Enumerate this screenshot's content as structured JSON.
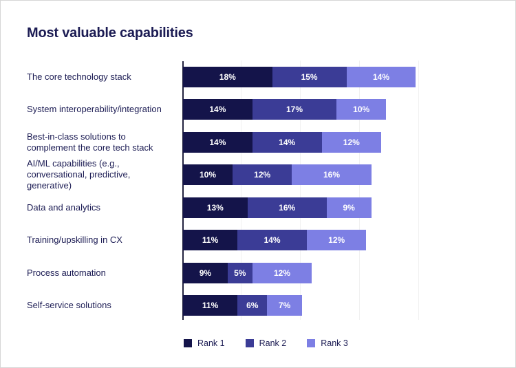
{
  "title": "Most valuable capabilities",
  "colors": {
    "rank1": "#14144a",
    "rank2": "#3b3c96",
    "rank3": "#7d7fe4",
    "text": "#1b1b53",
    "axis": "#22223f",
    "gridline": "#f1f1f1",
    "frame_border": "#d6d6d6",
    "background": "#ffffff",
    "value_label": "#ffffff"
  },
  "chart_data": {
    "type": "bar",
    "orientation": "horizontal",
    "stacked": true,
    "title": "Most valuable capabilities",
    "xlabel": "",
    "ylabel": "",
    "value_suffix": "%",
    "xlim": [
      0,
      62
    ],
    "grid": "faint-vertical",
    "legend_position": "bottom",
    "categories": [
      "The core technology stack",
      "System interoperability/integration",
      "Best-in-class solutions to complement the core tech stack",
      "AI/ML capabilities (e.g., conversational, predictive, generative)",
      "Data and analytics",
      "Training/upskilling in CX",
      "Process automation",
      "Self-service solutions"
    ],
    "series": [
      {
        "name": "Rank 1",
        "color": "#14144a",
        "values": [
          18,
          14,
          14,
          10,
          13,
          11,
          9,
          11
        ]
      },
      {
        "name": "Rank 2",
        "color": "#3b3c96",
        "values": [
          15,
          17,
          14,
          12,
          16,
          14,
          5,
          6
        ]
      },
      {
        "name": "Rank 3",
        "color": "#7d7fe4",
        "values": [
          14,
          10,
          12,
          16,
          9,
          12,
          12,
          7
        ]
      }
    ]
  },
  "legend": {
    "items": [
      {
        "label": "Rank 1"
      },
      {
        "label": "Rank 2"
      },
      {
        "label": "Rank 3"
      }
    ]
  }
}
